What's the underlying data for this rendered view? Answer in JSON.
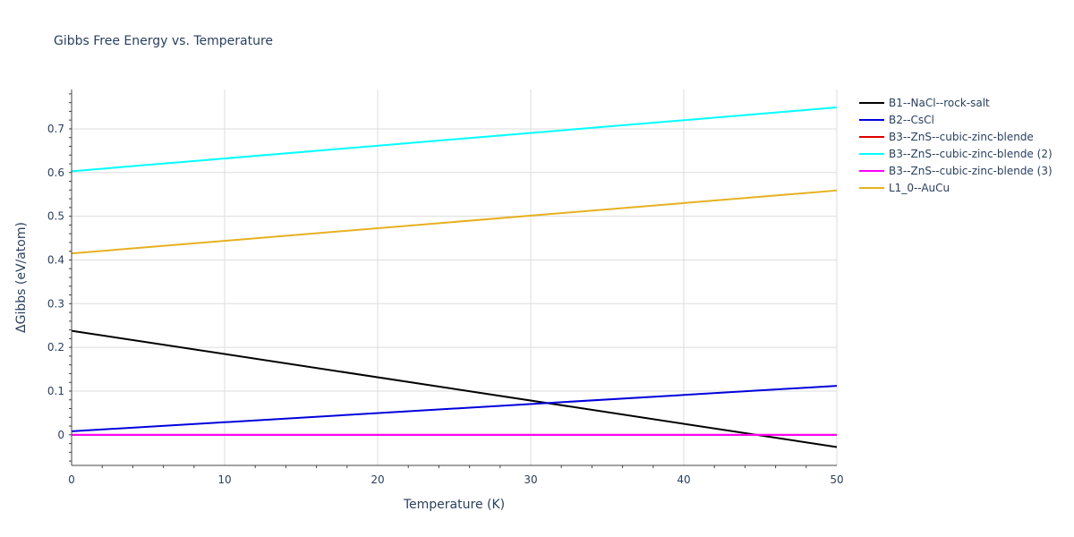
{
  "chart_data": {
    "type": "line",
    "title": "Gibbs Free Energy vs. Temperature",
    "xlabel": "Temperature (K)",
    "ylabel": "ΔGibbs (eV/atom)",
    "xlim": [
      0,
      50
    ],
    "ylim": [
      -0.07,
      0.79
    ],
    "xticks": [
      0,
      10,
      20,
      30,
      40,
      50
    ],
    "yticks": [
      0,
      0.1,
      0.2,
      0.3,
      0.4,
      0.5,
      0.6,
      0.7
    ],
    "ytick_labels": [
      "0",
      "0.1",
      "0.2",
      "0.3",
      "0.4",
      "0.5",
      "0.6",
      "0.7"
    ],
    "grid": true,
    "legend_position": "right",
    "series": [
      {
        "name": "B1--NaCl--rock-salt",
        "color": "#000000",
        "x": [
          0,
          50
        ],
        "y": [
          0.238,
          -0.028
        ]
      },
      {
        "name": "B2--CsCl",
        "color": "#0000dd",
        "x": [
          0,
          50
        ],
        "y": [
          0.008,
          0.112
        ]
      },
      {
        "name": "B3--ZnS--cubic-zinc-blende",
        "color": "#dd0000",
        "x": [
          0,
          50
        ],
        "y": [
          0.0,
          0.0
        ]
      },
      {
        "name": "B3--ZnS--cubic-zinc-blende (2)",
        "color": "#00ffff",
        "x": [
          0,
          50
        ],
        "y": [
          0.603,
          0.749
        ]
      },
      {
        "name": "B3--ZnS--cubic-zinc-blende (3)",
        "color": "#ff00ff",
        "x": [
          0,
          50
        ],
        "y": [
          0.0,
          0.0
        ]
      },
      {
        "name": "L1_0--AuCu",
        "color": "#e6b020",
        "x": [
          0,
          50
        ],
        "y": [
          0.415,
          0.559
        ]
      }
    ]
  }
}
